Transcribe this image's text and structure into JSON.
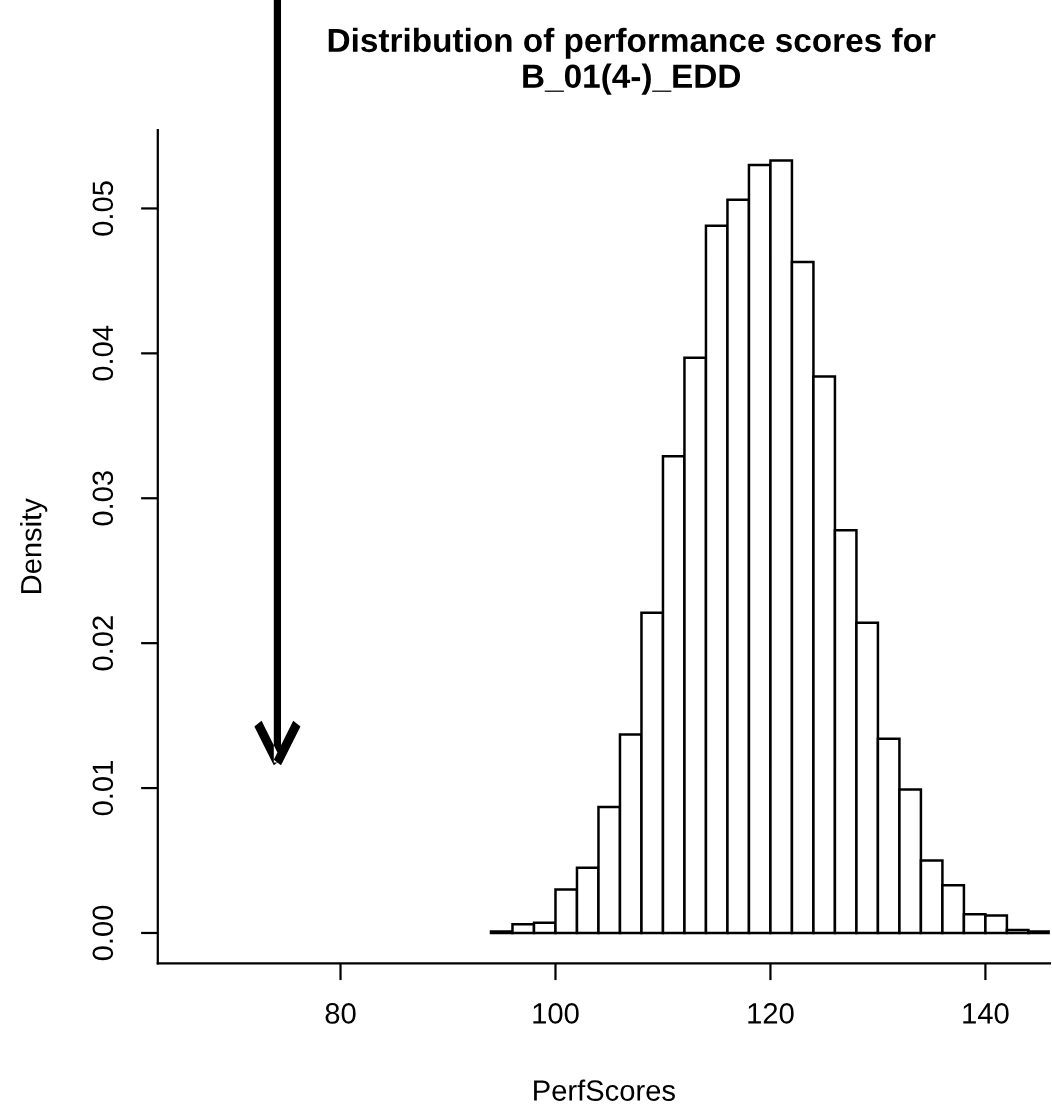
{
  "chart_data": {
    "type": "histogram",
    "title": "Distribution of performance scores for\nB_01(4-)_EDD",
    "xlabel": "PerfScores",
    "ylabel": "Density",
    "bins": [
      66,
      68,
      70,
      72,
      74,
      76,
      78,
      80,
      82,
      84,
      86,
      88,
      90,
      92,
      94,
      96,
      98,
      100,
      102,
      104,
      106,
      108,
      110,
      112,
      114,
      116,
      118,
      120,
      122,
      124,
      126,
      128,
      130,
      132,
      134,
      136,
      138,
      140,
      142,
      144,
      146
    ],
    "values": [
      0,
      0,
      0,
      0,
      0,
      0,
      0,
      0,
      0,
      0,
      0,
      0,
      0,
      0,
      0.0001,
      0.0006,
      0.0007,
      0.003,
      0.0045,
      0.0087,
      0.0137,
      0.0221,
      0.0329,
      0.0397,
      0.0488,
      0.0506,
      0.053,
      0.0533,
      0.0463,
      0.0384,
      0.0278,
      0.0214,
      0.0134,
      0.0099,
      0.005,
      0.0033,
      0.0013,
      0.0012,
      0.0002,
      0.0001
    ],
    "color": "#ffffff",
    "xlim": [
      63,
      146
    ],
    "ylim": [
      -0.0021,
      0.0554
    ],
    "xticks": [
      80,
      100,
      120,
      140
    ],
    "yticks": [
      {
        "value": 0,
        "label": "0.00"
      },
      {
        "value": 0.01,
        "label": "0.01"
      },
      {
        "value": 0.02,
        "label": "0.02"
      },
      {
        "value": 0.03,
        "label": "0.03"
      },
      {
        "value": 0.04,
        "label": "0.04"
      },
      {
        "value": 0.05,
        "label": "0.05"
      }
    ],
    "grid": false
  }
}
